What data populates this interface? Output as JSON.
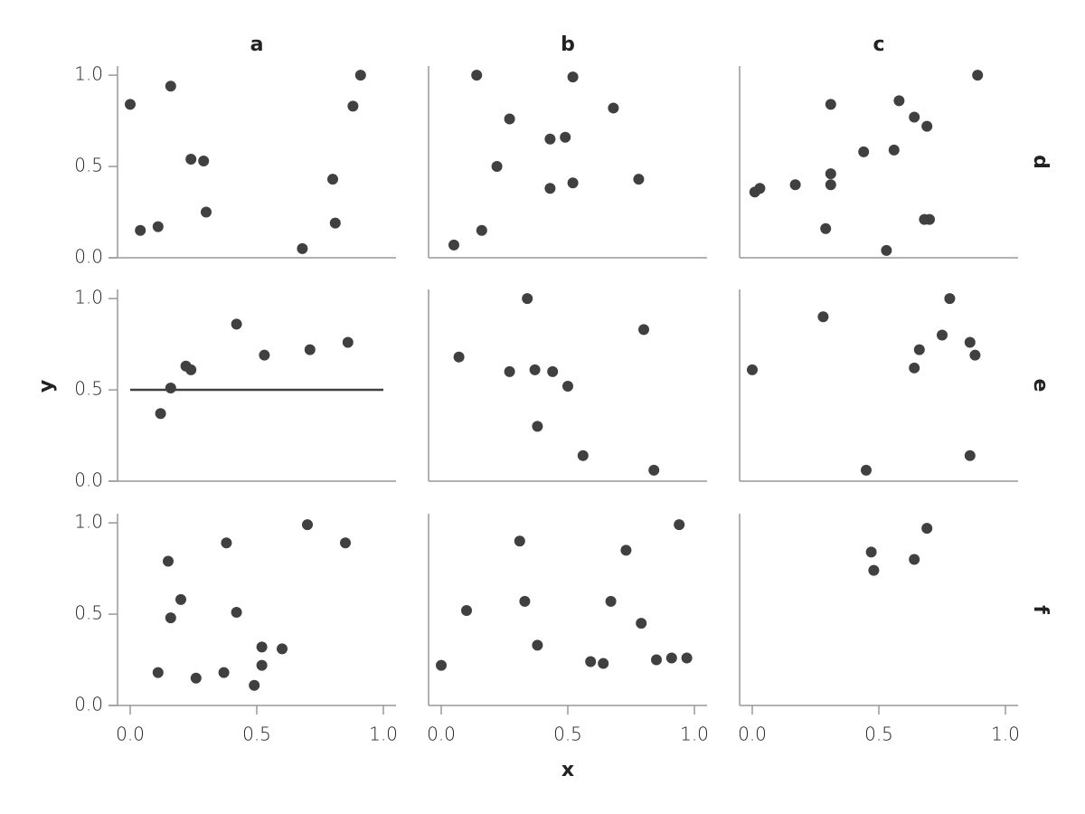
{
  "facets": {
    "columns": [
      "a",
      "b",
      "c"
    ],
    "rows": [
      "d",
      "e",
      "f"
    ],
    "x_label": "x",
    "y_label": "y"
  },
  "chart_data": [
    {
      "type": "scatter",
      "color": "#404040",
      "xlim": [
        -0.05,
        1.05
      ],
      "ylim": [
        0,
        1.05
      ],
      "yticks": [
        {
          "value": 0,
          "label": "0.0"
        },
        {
          "value": 0.5,
          "label": "0.5"
        },
        {
          "value": 1,
          "label": "1.0"
        }
      ],
      "x": [
        0.0,
        0.04,
        0.11,
        0.16,
        0.24,
        0.29,
        0.3,
        0.68,
        0.8,
        0.81,
        0.88,
        0.91
      ],
      "y": [
        0.84,
        0.15,
        0.17,
        0.94,
        0.54,
        0.53,
        0.25,
        0.05,
        0.43,
        0.19,
        0.83,
        1.0
      ]
    },
    {
      "type": "scatter",
      "color": "#404040",
      "xlim": [
        -0.05,
        1.05
      ],
      "ylim": [
        0,
        1.05
      ],
      "x": [
        0.05,
        0.14,
        0.16,
        0.22,
        0.27,
        0.43,
        0.43,
        0.49,
        0.52,
        0.52,
        0.68,
        0.78
      ],
      "y": [
        0.07,
        1.0,
        0.15,
        0.5,
        0.76,
        0.65,
        0.38,
        0.66,
        0.41,
        0.99,
        0.82,
        0.43
      ]
    },
    {
      "type": "scatter",
      "color": "#404040",
      "xlim": [
        -0.05,
        1.05
      ],
      "ylim": [
        0,
        1.05
      ],
      "x": [
        0.01,
        0.03,
        0.17,
        0.29,
        0.31,
        0.31,
        0.31,
        0.44,
        0.53,
        0.56,
        0.58,
        0.64,
        0.69,
        0.68,
        0.7,
        0.89
      ],
      "y": [
        0.36,
        0.38,
        0.4,
        0.16,
        0.84,
        0.46,
        0.4,
        0.58,
        0.04,
        0.59,
        0.86,
        0.77,
        0.72,
        0.21,
        0.21,
        1.0
      ]
    },
    {
      "type": "scatter",
      "color": "#404040",
      "xlim": [
        -0.05,
        1.05
      ],
      "ylim": [
        0,
        1.05
      ],
      "yticks": [
        {
          "value": 0,
          "label": "0.0"
        },
        {
          "value": 0.5,
          "label": "0.5"
        },
        {
          "value": 1,
          "label": "1.0"
        }
      ],
      "hline": {
        "y": 0.5,
        "xmin": 0,
        "xmax": 1
      },
      "x": [
        0.12,
        0.16,
        0.22,
        0.24,
        0.42,
        0.53,
        0.71,
        0.86
      ],
      "y": [
        0.37,
        0.51,
        0.63,
        0.61,
        0.86,
        0.69,
        0.72,
        0.76
      ]
    },
    {
      "type": "scatter",
      "color": "#404040",
      "xlim": [
        -0.05,
        1.05
      ],
      "ylim": [
        0,
        1.05
      ],
      "x": [
        0.07,
        0.27,
        0.34,
        0.37,
        0.38,
        0.44,
        0.5,
        0.56,
        0.8,
        0.84
      ],
      "y": [
        0.68,
        0.6,
        1.0,
        0.61,
        0.3,
        0.6,
        0.52,
        0.14,
        0.83,
        0.06
      ]
    },
    {
      "type": "scatter",
      "color": "#404040",
      "xlim": [
        -0.05,
        1.05
      ],
      "ylim": [
        0,
        1.05
      ],
      "x": [
        0.0,
        0.28,
        0.45,
        0.64,
        0.66,
        0.75,
        0.78,
        0.86,
        0.88,
        0.86
      ],
      "y": [
        0.61,
        0.9,
        0.06,
        0.62,
        0.72,
        0.8,
        1.0,
        0.76,
        0.69,
        0.14
      ]
    },
    {
      "type": "scatter",
      "color": "#404040",
      "xlim": [
        -0.05,
        1.05
      ],
      "ylim": [
        0,
        1.05
      ],
      "xticks": [
        {
          "value": 0,
          "label": "0.0"
        },
        {
          "value": 0.5,
          "label": "0.5"
        },
        {
          "value": 1,
          "label": "1.0"
        }
      ],
      "yticks": [
        {
          "value": 0,
          "label": "0.0"
        },
        {
          "value": 0.5,
          "label": "0.5"
        },
        {
          "value": 1,
          "label": "1.0"
        }
      ],
      "x": [
        0.11,
        0.15,
        0.16,
        0.2,
        0.26,
        0.38,
        0.37,
        0.42,
        0.52,
        0.52,
        0.49,
        0.6,
        0.7,
        0.85
      ],
      "y": [
        0.18,
        0.79,
        0.48,
        0.58,
        0.15,
        0.89,
        0.18,
        0.51,
        0.32,
        0.22,
        0.11,
        0.31,
        0.99,
        0.89
      ]
    },
    {
      "type": "scatter",
      "color": "#404040",
      "xlim": [
        -0.05,
        1.05
      ],
      "ylim": [
        0,
        1.05
      ],
      "xticks": [
        {
          "value": 0,
          "label": "0.0"
        },
        {
          "value": 0.5,
          "label": "0.5"
        },
        {
          "value": 1,
          "label": "1.0"
        }
      ],
      "x": [
        0.0,
        0.1,
        0.31,
        0.33,
        0.38,
        0.59,
        0.64,
        0.67,
        0.73,
        0.79,
        0.85,
        0.91,
        0.97,
        0.94
      ],
      "y": [
        0.22,
        0.52,
        0.9,
        0.57,
        0.33,
        0.24,
        0.23,
        0.57,
        0.85,
        0.45,
        0.25,
        0.26,
        0.26,
        0.99
      ]
    },
    {
      "type": "scatter",
      "color": "#404040",
      "xlim": [
        -0.05,
        1.05
      ],
      "ylim": [
        0,
        1.05
      ],
      "xticks": [
        {
          "value": 0,
          "label": "0.0"
        },
        {
          "value": 0.5,
          "label": "0.5"
        },
        {
          "value": 1,
          "label": "1.0"
        }
      ],
      "x": [
        0.47,
        0.48,
        0.64,
        0.69
      ],
      "y": [
        0.84,
        0.74,
        0.8,
        0.97
      ]
    }
  ]
}
